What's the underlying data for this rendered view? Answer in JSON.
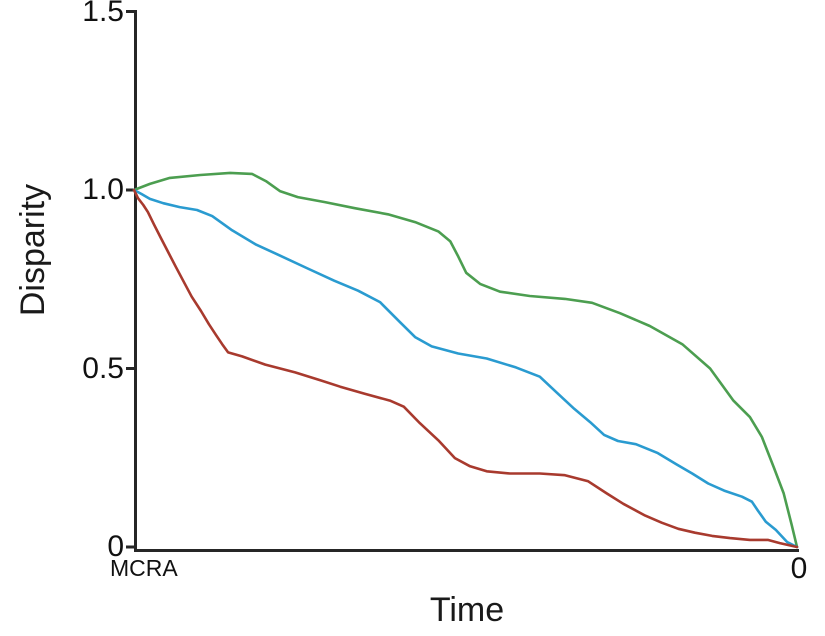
{
  "figure": {
    "background": "#ffffff",
    "axis_color": "#262626",
    "text_color": "#1a1a1a"
  },
  "chart_data": {
    "type": "line",
    "title": "",
    "xlabel": "Time",
    "ylabel": "Disparity",
    "ylim": [
      0,
      1.5
    ],
    "grid": "off",
    "legend": "none",
    "y_ticks": [
      {
        "label": "1.5",
        "value": 1.5
      },
      {
        "label": "1.0",
        "value": 1.0
      },
      {
        "label": "0.5",
        "value": 0.5
      },
      {
        "label": "0",
        "value": 0.0
      }
    ],
    "x_ticks": [
      {
        "label": "MCRA",
        "frac": 0.0
      },
      {
        "label": "0",
        "frac": 1.0
      }
    ],
    "series": [
      {
        "name": "green-curve",
        "color": "#4c9e50",
        "points": [
          [
            0.0,
            1.0
          ],
          [
            0.024,
            1.017
          ],
          [
            0.054,
            1.034
          ],
          [
            0.1,
            1.042
          ],
          [
            0.145,
            1.048
          ],
          [
            0.178,
            1.045
          ],
          [
            0.199,
            1.025
          ],
          [
            0.22,
            0.997
          ],
          [
            0.247,
            0.98
          ],
          [
            0.288,
            0.966
          ],
          [
            0.333,
            0.949
          ],
          [
            0.383,
            0.932
          ],
          [
            0.424,
            0.91
          ],
          [
            0.459,
            0.884
          ],
          [
            0.477,
            0.856
          ],
          [
            0.489,
            0.814
          ],
          [
            0.501,
            0.768
          ],
          [
            0.522,
            0.737
          ],
          [
            0.552,
            0.715
          ],
          [
            0.597,
            0.703
          ],
          [
            0.65,
            0.695
          ],
          [
            0.691,
            0.684
          ],
          [
            0.733,
            0.655
          ],
          [
            0.778,
            0.619
          ],
          [
            0.827,
            0.568
          ],
          [
            0.869,
            0.5
          ],
          [
            0.904,
            0.41
          ],
          [
            0.929,
            0.364
          ],
          [
            0.947,
            0.308
          ],
          [
            0.965,
            0.223
          ],
          [
            0.98,
            0.15
          ],
          [
            0.992,
            0.062
          ],
          [
            1.0,
            0.0
          ]
        ]
      },
      {
        "name": "blue-curve",
        "color": "#2a9bd0",
        "points": [
          [
            0.0,
            1.0
          ],
          [
            0.011,
            0.989
          ],
          [
            0.024,
            0.975
          ],
          [
            0.044,
            0.963
          ],
          [
            0.069,
            0.952
          ],
          [
            0.095,
            0.944
          ],
          [
            0.118,
            0.927
          ],
          [
            0.148,
            0.887
          ],
          [
            0.184,
            0.847
          ],
          [
            0.223,
            0.814
          ],
          [
            0.262,
            0.78
          ],
          [
            0.302,
            0.746
          ],
          [
            0.338,
            0.718
          ],
          [
            0.371,
            0.686
          ],
          [
            0.401,
            0.63
          ],
          [
            0.424,
            0.588
          ],
          [
            0.449,
            0.562
          ],
          [
            0.489,
            0.542
          ],
          [
            0.532,
            0.528
          ],
          [
            0.576,
            0.503
          ],
          [
            0.612,
            0.477
          ],
          [
            0.638,
            0.432
          ],
          [
            0.664,
            0.387
          ],
          [
            0.688,
            0.35
          ],
          [
            0.709,
            0.314
          ],
          [
            0.73,
            0.297
          ],
          [
            0.757,
            0.288
          ],
          [
            0.79,
            0.263
          ],
          [
            0.818,
            0.232
          ],
          [
            0.842,
            0.206
          ],
          [
            0.866,
            0.178
          ],
          [
            0.89,
            0.158
          ],
          [
            0.917,
            0.141
          ],
          [
            0.932,
            0.127
          ],
          [
            0.941,
            0.102
          ],
          [
            0.953,
            0.071
          ],
          [
            0.968,
            0.048
          ],
          [
            0.985,
            0.014
          ],
          [
            1.0,
            0.0
          ]
        ]
      },
      {
        "name": "red-curve",
        "color": "#a83a2e",
        "points": [
          [
            0.0,
            1.0
          ],
          [
            0.006,
            0.977
          ],
          [
            0.014,
            0.958
          ],
          [
            0.021,
            0.938
          ],
          [
            0.03,
            0.904
          ],
          [
            0.041,
            0.864
          ],
          [
            0.051,
            0.828
          ],
          [
            0.063,
            0.785
          ],
          [
            0.075,
            0.743
          ],
          [
            0.087,
            0.701
          ],
          [
            0.101,
            0.661
          ],
          [
            0.113,
            0.624
          ],
          [
            0.124,
            0.593
          ],
          [
            0.133,
            0.568
          ],
          [
            0.142,
            0.545
          ],
          [
            0.163,
            0.534
          ],
          [
            0.198,
            0.511
          ],
          [
            0.243,
            0.489
          ],
          [
            0.278,
            0.469
          ],
          [
            0.311,
            0.449
          ],
          [
            0.348,
            0.429
          ],
          [
            0.386,
            0.41
          ],
          [
            0.407,
            0.393
          ],
          [
            0.431,
            0.347
          ],
          [
            0.459,
            0.299
          ],
          [
            0.484,
            0.249
          ],
          [
            0.507,
            0.226
          ],
          [
            0.532,
            0.212
          ],
          [
            0.567,
            0.206
          ],
          [
            0.612,
            0.206
          ],
          [
            0.65,
            0.201
          ],
          [
            0.685,
            0.184
          ],
          [
            0.713,
            0.15
          ],
          [
            0.738,
            0.121
          ],
          [
            0.771,
            0.088
          ],
          [
            0.796,
            0.068
          ],
          [
            0.821,
            0.051
          ],
          [
            0.846,
            0.04
          ],
          [
            0.872,
            0.031
          ],
          [
            0.899,
            0.025
          ],
          [
            0.929,
            0.02
          ],
          [
            0.956,
            0.02
          ],
          [
            0.974,
            0.011
          ],
          [
            1.0,
            0.0
          ]
        ]
      }
    ]
  }
}
